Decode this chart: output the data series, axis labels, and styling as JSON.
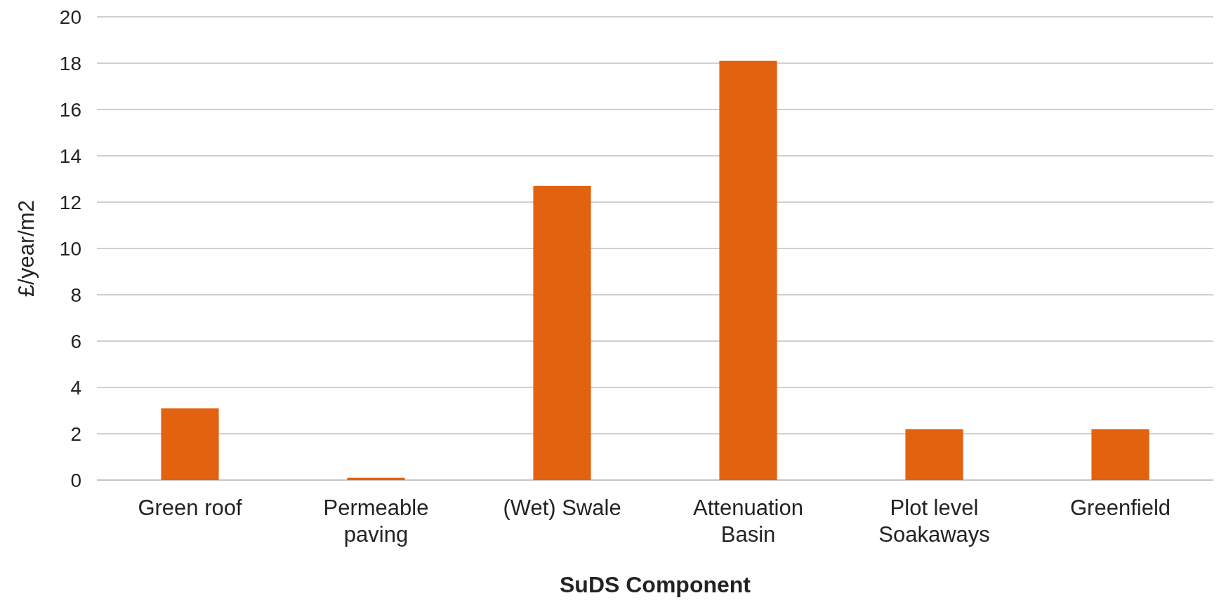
{
  "chart_data": {
    "type": "bar",
    "xlabel": "SuDS Component",
    "ylabel": "£/year/m2",
    "categories": [
      "Green roof",
      "Permeable paving",
      "(Wet) Swale",
      "Attenuation Basin",
      "Plot level Soakaways",
      "Greenfield"
    ],
    "values": [
      3.1,
      0.1,
      12.7,
      18.1,
      2.2,
      2.2
    ],
    "color": "#e36210",
    "ylim": [
      0,
      20
    ],
    "yticks": [
      0,
      2,
      4,
      6,
      8,
      10,
      12,
      14,
      16,
      18,
      20
    ],
    "grid": "y"
  }
}
